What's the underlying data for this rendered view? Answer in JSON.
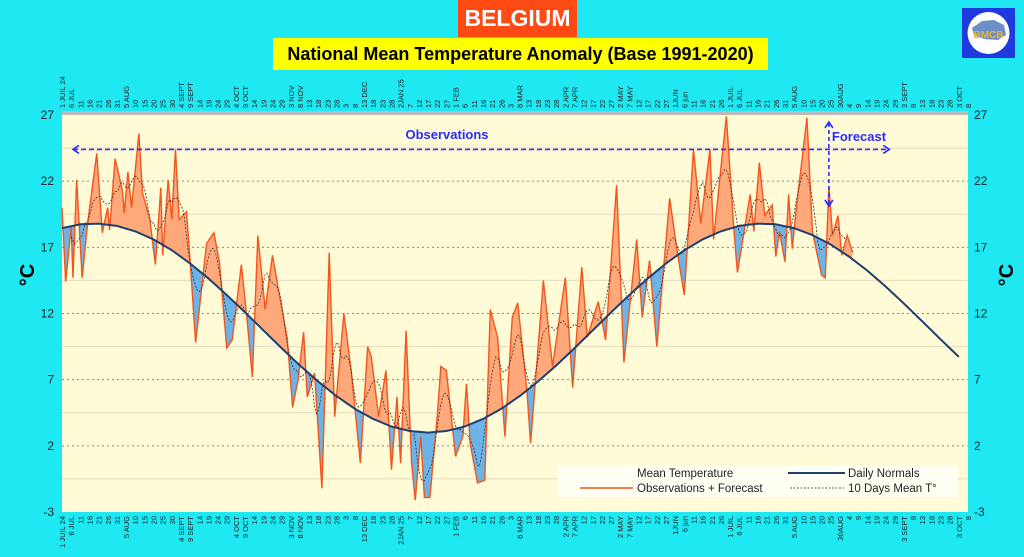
{
  "header": {
    "title": "BELGIUM",
    "subtitle": "National Mean Temperature Anomaly (Base 1991-2020)",
    "logo_text": "BMCB"
  },
  "colors": {
    "background": "#1ee8f2",
    "plot_background": "#fffbd6",
    "observations_line": "#f0561e",
    "above_normal_fill": "#ffa97a",
    "below_normal_fill": "#6cb4e8",
    "normals_line": "#1f3f6e",
    "annotation": "#2b2bff"
  },
  "chart_data": {
    "type": "line",
    "ylabel": "°C",
    "ylim": [
      -3,
      27
    ],
    "yticks": [
      27,
      22,
      17,
      12,
      7,
      2,
      -3
    ],
    "xlim": [
      "2024-07-01",
      "2025-11-08"
    ],
    "grid": true,
    "legend_placement": "bottom-right",
    "xtick_labels": [
      "1 JUIL 24",
      "6 JUL",
      "11",
      "16",
      "21",
      "26",
      "31",
      "5 AUG",
      "10",
      "15",
      "20",
      "25",
      "30",
      "4 SEPT",
      "9 SEPT",
      "14",
      "19",
      "24",
      "29",
      "4 OCT",
      "9 OCT",
      "14",
      "19",
      "24",
      "29",
      "3 NOV",
      "8 NOV",
      "13",
      "18",
      "23",
      "28",
      "3",
      "8",
      "13 DEC",
      "18",
      "23",
      "28",
      "2JAN 25",
      "7",
      "12",
      "17",
      "22",
      "27",
      "1 FEB",
      "6",
      "11",
      "16",
      "21",
      "26",
      "3",
      "8 MAR",
      "13",
      "18",
      "23",
      "28",
      "2 APR",
      "7 APR",
      "12",
      "17",
      "22",
      "27",
      "2 MAY",
      "7 MAY",
      "12",
      "17",
      "22",
      "27",
      "1JUN",
      "6 jun",
      "11",
      "16",
      "21",
      "26",
      "1 JUIL",
      "6 JUL",
      "11",
      "16",
      "21",
      "26",
      "31",
      "5 AUG",
      "10",
      "15",
      "20",
      "25",
      "30AUG",
      "4",
      "9",
      "14",
      "19",
      "24",
      "29",
      "3 SEPT",
      "8",
      "13",
      "18",
      "23",
      "28",
      "3 OCT",
      "8"
    ],
    "legend": {
      "title": "Mean Temperature",
      "observations": "Observations + Forecast",
      "normals": "Daily Normals",
      "mean10": "10 Days Mean T°"
    },
    "annotations": {
      "observations": "Observations",
      "forecast": "Forecast",
      "forecast_start": "2025-08-24"
    },
    "series": [
      {
        "name": "Observations + Forecast",
        "points": [
          [
            "2024-07-01",
            20.0
          ],
          [
            "2024-07-03",
            14.4
          ],
          [
            "2024-07-06",
            18.5
          ],
          [
            "2024-07-07",
            14.7
          ],
          [
            "2024-07-09",
            22.1
          ],
          [
            "2024-07-12",
            14.7
          ],
          [
            "2024-07-15",
            18.8
          ],
          [
            "2024-07-20",
            24.1
          ],
          [
            "2024-07-23",
            18.1
          ],
          [
            "2024-07-26",
            20.0
          ],
          [
            "2024-07-27",
            18.3
          ],
          [
            "2024-07-30",
            23.7
          ],
          [
            "2024-08-03",
            21.3
          ],
          [
            "2024-08-04",
            19.6
          ],
          [
            "2024-08-06",
            22.7
          ],
          [
            "2024-08-08",
            20.0
          ],
          [
            "2024-08-12",
            25.6
          ],
          [
            "2024-08-14",
            21.1
          ],
          [
            "2024-08-18",
            19.1
          ],
          [
            "2024-08-21",
            15.7
          ],
          [
            "2024-08-24",
            21.5
          ],
          [
            "2024-08-25",
            16.4
          ],
          [
            "2024-08-28",
            22.1
          ],
          [
            "2024-08-30",
            19.1
          ],
          [
            "2024-09-01",
            24.4
          ],
          [
            "2024-09-03",
            19.1
          ],
          [
            "2024-09-07",
            19.7
          ],
          [
            "2024-09-09",
            16.0
          ],
          [
            "2024-09-12",
            9.8
          ],
          [
            "2024-09-14",
            12.3
          ],
          [
            "2024-09-18",
            17.3
          ],
          [
            "2024-09-22",
            18.1
          ],
          [
            "2024-09-25",
            15.9
          ],
          [
            "2024-09-29",
            9.4
          ],
          [
            "2024-10-02",
            10.0
          ],
          [
            "2024-10-07",
            15.7
          ],
          [
            "2024-10-10",
            11.7
          ],
          [
            "2024-10-13",
            7.2
          ],
          [
            "2024-10-16",
            17.9
          ],
          [
            "2024-10-20",
            12.3
          ],
          [
            "2024-10-24",
            16.4
          ],
          [
            "2024-10-28",
            13.2
          ],
          [
            "2024-11-01",
            10.2
          ],
          [
            "2024-11-04",
            4.9
          ],
          [
            "2024-11-07",
            7.0
          ],
          [
            "2024-11-10",
            10.6
          ],
          [
            "2024-11-12",
            5.7
          ],
          [
            "2024-11-16",
            7.5
          ],
          [
            "2024-11-20",
            -1.2
          ],
          [
            "2024-11-24",
            16.6
          ],
          [
            "2024-11-27",
            4.2
          ],
          [
            "2024-12-02",
            12.0
          ],
          [
            "2024-12-06",
            7.7
          ],
          [
            "2024-12-11",
            0.7
          ],
          [
            "2024-12-15",
            9.5
          ],
          [
            "2024-12-17",
            8.7
          ],
          [
            "2024-12-21",
            4.2
          ],
          [
            "2024-12-25",
            7.7
          ],
          [
            "2024-12-28",
            0.2
          ],
          [
            "2024-12-31",
            5.7
          ],
          [
            "2025-01-02",
            0.7
          ],
          [
            "2025-01-05",
            10.7
          ],
          [
            "2025-01-08",
            0.7
          ],
          [
            "2025-01-10",
            -2.1
          ],
          [
            "2025-01-13",
            2.7
          ],
          [
            "2025-01-15",
            -1.9
          ],
          [
            "2025-01-18",
            -1.9
          ],
          [
            "2025-01-22",
            4.2
          ],
          [
            "2025-01-24",
            8.0
          ],
          [
            "2025-01-27",
            7.7
          ],
          [
            "2025-02-01",
            1.2
          ],
          [
            "2025-02-05",
            2.7
          ],
          [
            "2025-02-07",
            6.7
          ],
          [
            "2025-02-09",
            2.2
          ],
          [
            "2025-02-13",
            -0.8
          ],
          [
            "2025-02-17",
            -0.6
          ],
          [
            "2025-02-20",
            12.3
          ],
          [
            "2025-02-24",
            10.2
          ],
          [
            "2025-02-28",
            2.7
          ],
          [
            "2025-03-04",
            11.7
          ],
          [
            "2025-03-07",
            12.8
          ],
          [
            "2025-03-12",
            6.2
          ],
          [
            "2025-03-14",
            2.2
          ],
          [
            "2025-03-21",
            14.5
          ],
          [
            "2025-03-26",
            8.0
          ],
          [
            "2025-04-02",
            14.7
          ],
          [
            "2025-04-06",
            6.4
          ],
          [
            "2025-04-11",
            15.5
          ],
          [
            "2025-04-14",
            10.2
          ],
          [
            "2025-04-20",
            12.9
          ],
          [
            "2025-04-24",
            10.0
          ],
          [
            "2025-04-30",
            21.7
          ],
          [
            "2025-05-04",
            8.3
          ],
          [
            "2025-05-11",
            17.6
          ],
          [
            "2025-05-14",
            11.7
          ],
          [
            "2025-05-18",
            16.0
          ],
          [
            "2025-05-22",
            9.5
          ],
          [
            "2025-05-29",
            20.7
          ],
          [
            "2025-06-02",
            16.8
          ],
          [
            "2025-06-06",
            13.4
          ],
          [
            "2025-06-11",
            24.4
          ],
          [
            "2025-06-15",
            18.8
          ],
          [
            "2025-06-20",
            24.4
          ],
          [
            "2025-06-22",
            17.6
          ],
          [
            "2025-06-26",
            23.0
          ],
          [
            "2025-06-29",
            26.9
          ],
          [
            "2025-07-03",
            18.5
          ],
          [
            "2025-07-05",
            15.1
          ],
          [
            "2025-07-12",
            21.0
          ],
          [
            "2025-07-14",
            18.2
          ],
          [
            "2025-07-17",
            23.4
          ],
          [
            "2025-07-20",
            19.4
          ],
          [
            "2025-07-24",
            20.2
          ],
          [
            "2025-07-26",
            16.3
          ],
          [
            "2025-07-28",
            18.2
          ],
          [
            "2025-07-31",
            15.9
          ],
          [
            "2025-08-02",
            21.0
          ],
          [
            "2025-08-04",
            16.9
          ],
          [
            "2025-08-06",
            19.7
          ],
          [
            "2025-08-12",
            26.8
          ],
          [
            "2025-08-15",
            18.2
          ],
          [
            "2025-08-18",
            16.2
          ],
          [
            "2025-08-20",
            14.9
          ],
          [
            "2025-08-22",
            14.7
          ],
          [
            "2025-08-24",
            21.6
          ],
          [
            "2025-08-26",
            17.9
          ],
          [
            "2025-08-29",
            19.4
          ],
          [
            "2025-08-31",
            16.4
          ],
          [
            "2025-09-03",
            17.9
          ],
          [
            "2025-09-06",
            16.6
          ]
        ]
      },
      {
        "name": "Daily Normals",
        "points": [
          [
            "2024-07-01",
            18.45
          ],
          [
            "2024-07-11",
            18.74
          ],
          [
            "2024-07-21",
            18.79
          ],
          [
            "2024-07-31",
            18.62
          ],
          [
            "2024-08-10",
            18.21
          ],
          [
            "2024-08-20",
            17.6
          ],
          [
            "2024-08-30",
            16.78
          ],
          [
            "2024-09-09",
            15.78
          ],
          [
            "2024-09-19",
            14.65
          ],
          [
            "2024-09-29",
            13.4
          ],
          [
            "2024-10-09",
            12.09
          ],
          [
            "2024-10-19",
            10.73
          ],
          [
            "2024-10-29",
            9.38
          ],
          [
            "2024-11-08",
            8.07
          ],
          [
            "2024-11-18",
            6.86
          ],
          [
            "2024-11-28",
            5.75
          ],
          [
            "2024-12-08",
            4.8
          ],
          [
            "2024-12-18",
            4.03
          ],
          [
            "2024-12-28",
            3.46
          ],
          [
            "2025-01-07",
            3.12
          ],
          [
            "2025-01-17",
            3.0
          ],
          [
            "2025-01-27",
            3.12
          ],
          [
            "2025-02-06",
            3.46
          ],
          [
            "2025-02-16",
            4.03
          ],
          [
            "2025-02-26",
            4.8
          ],
          [
            "2025-03-08",
            5.75
          ],
          [
            "2025-03-18",
            6.86
          ],
          [
            "2025-03-28",
            8.07
          ],
          [
            "2025-04-07",
            9.38
          ],
          [
            "2025-04-17",
            10.73
          ],
          [
            "2025-04-27",
            12.09
          ],
          [
            "2025-05-07",
            13.4
          ],
          [
            "2025-05-17",
            14.65
          ],
          [
            "2025-05-27",
            15.78
          ],
          [
            "2025-06-06",
            16.78
          ],
          [
            "2025-06-16",
            17.6
          ],
          [
            "2025-06-26",
            18.21
          ],
          [
            "2025-07-06",
            18.62
          ],
          [
            "2025-07-16",
            18.79
          ],
          [
            "2025-07-26",
            18.74
          ],
          [
            "2025-08-05",
            18.45
          ],
          [
            "2025-08-15",
            17.93
          ],
          [
            "2025-08-25",
            17.21
          ],
          [
            "2025-09-04",
            16.3
          ],
          [
            "2025-09-14",
            15.24
          ],
          [
            "2025-09-24",
            14.04
          ],
          [
            "2025-10-04",
            12.75
          ],
          [
            "2025-10-14",
            11.41
          ],
          [
            "2025-10-24",
            10.05
          ],
          [
            "2025-11-03",
            8.72
          ]
        ]
      }
    ]
  }
}
